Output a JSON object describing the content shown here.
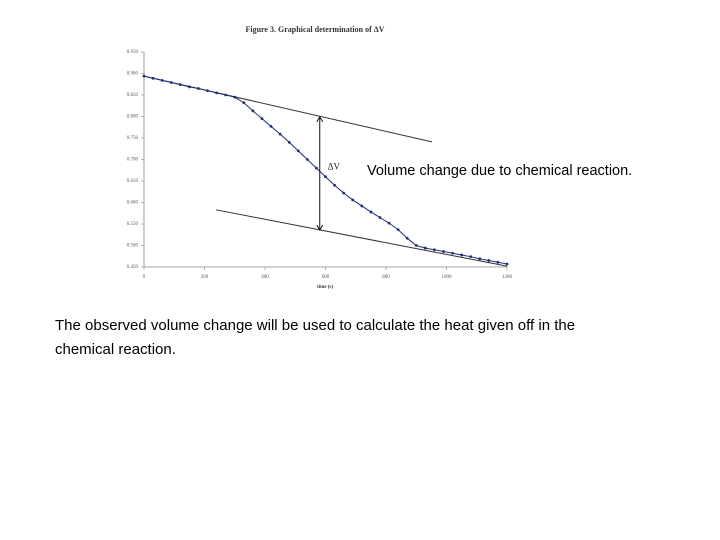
{
  "chart_data": {
    "type": "line",
    "title": "Figure 3. Graphical determination of ΔV",
    "x_label": "time (s)",
    "x": [
      0,
      30,
      60,
      90,
      120,
      150,
      180,
      210,
      240,
      270,
      300,
      330,
      360,
      390,
      420,
      450,
      480,
      510,
      540,
      570,
      600,
      630,
      660,
      690,
      720,
      750,
      780,
      810,
      840,
      870,
      900,
      930,
      960,
      990,
      1020,
      1050,
      1080,
      1110,
      1140,
      1170,
      1200
    ],
    "series": [
      {
        "color": "#1f2f7a",
        "values": [
          0.894,
          0.889,
          0.884,
          0.879,
          0.874,
          0.869,
          0.865,
          0.86,
          0.855,
          0.85,
          0.845,
          0.832,
          0.813,
          0.795,
          0.777,
          0.759,
          0.74,
          0.72,
          0.7,
          0.68,
          0.66,
          0.64,
          0.622,
          0.606,
          0.592,
          0.578,
          0.565,
          0.552,
          0.537,
          0.517,
          0.5,
          0.494,
          0.49,
          0.486,
          0.482,
          0.478,
          0.474,
          0.469,
          0.465,
          0.461,
          0.457
        ]
      }
    ],
    "fit_lines": [
      {
        "x": [
          0,
          952
        ],
        "values": [
          0.894,
          0.741
        ]
      },
      {
        "x": [
          238,
          1200
        ],
        "values": [
          0.583,
          0.452
        ]
      }
    ],
    "arrow": {
      "x": 581,
      "values": [
        0.799,
        0.536
      ],
      "label": "ΔV"
    },
    "annotation": "Volume change due to chemical reaction.",
    "xlim": [
      0,
      1200
    ],
    "xticks": [
      0,
      200,
      400,
      600,
      800,
      1000,
      1200
    ],
    "ylim": [
      0.45,
      0.95
    ],
    "yticks": [
      {
        "value": 0.95,
        "label": "0.950"
      },
      {
        "value": 0.9,
        "label": "0.900"
      },
      {
        "value": 0.85,
        "label": "0.850"
      },
      {
        "value": 0.8,
        "label": "0.800"
      },
      {
        "value": 0.75,
        "label": "0.750"
      },
      {
        "value": 0.7,
        "label": "0.700"
      },
      {
        "value": 0.65,
        "label": "0.650"
      },
      {
        "value": 0.6,
        "label": "0.600"
      },
      {
        "value": 0.55,
        "label": "0.550"
      },
      {
        "value": 0.5,
        "label": "0.500"
      },
      {
        "value": 0.45,
        "label": "0.450"
      }
    ]
  },
  "caption": [
    "The observed volume change will be used to calculate the heat given off in the",
    "chemical reaction."
  ]
}
